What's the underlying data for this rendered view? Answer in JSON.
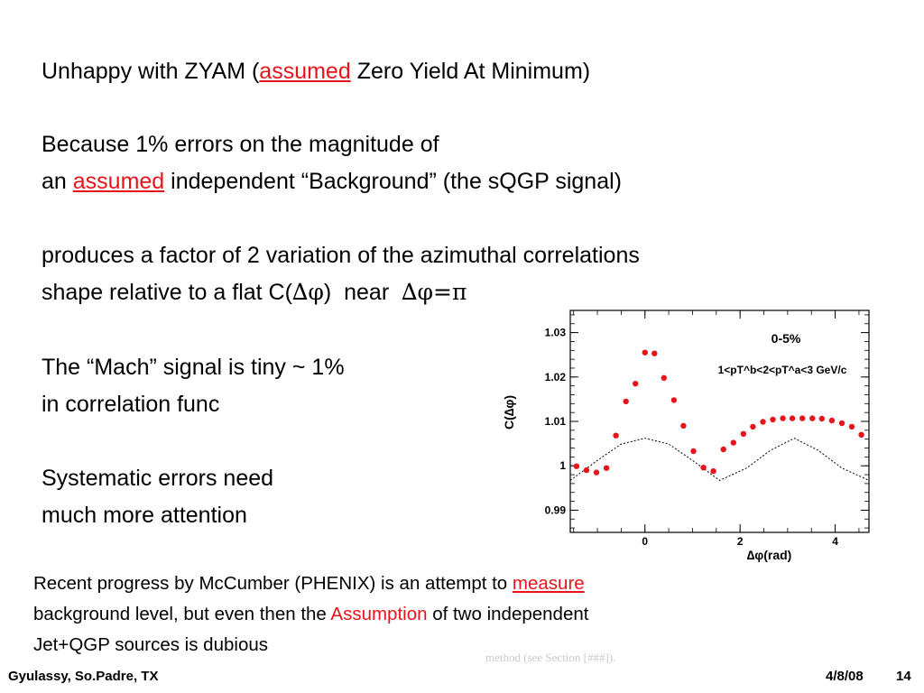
{
  "slide": {
    "line1": {
      "pre": "Unhappy with ZYAM (",
      "highlight": "assumed",
      "post": " Zero Yield At Minimum)"
    },
    "line2": "Because 1% errors on the magnitude of",
    "line3": {
      "pre": "an ",
      "highlight": "assumed",
      "post": " independent “Background” (the sQGP signal)"
    },
    "line4": "produces a factor of 2 variation of the azimuthal correlations",
    "line5": {
      "pre": "shape relative to a flat C(",
      "sym1": "∆φ",
      "mid": ")  near  ",
      "sym2": "∆φ=π"
    },
    "line6": "The “Mach” signal is tiny ~ 1%",
    "line7": "in correlation func",
    "line8": "Systematic errors need",
    "line9": "much more attention"
  },
  "note": {
    "l1_pre": "Recent progress by McCumber (PHENIX) is an attempt to ",
    "l1_highlight": "measure",
    "l2_pre": "background level, but even then the ",
    "l2_highlight": "Assumption",
    "l2_post": " of two independent",
    "l3": "Jet+QGP sources is dubious"
  },
  "ghost_text": "method (see Section [###]).",
  "footer": {
    "left": "Gyulassy, So.Padre, TX",
    "date": "4/8/08",
    "page": "14"
  },
  "colors": {
    "highlight": "#e8141c",
    "points": "#e8141c"
  },
  "chart_data": {
    "type": "scatter",
    "annotation_title": "0-5%",
    "annotation_cuts": "1<pT^b<2<pT^a<3 GeV/c",
    "xlabel": "∆φ(rad)",
    "ylabel": "C(∆φ)",
    "xlim": [
      -1.57,
      4.71
    ],
    "ylim": [
      0.985,
      1.035
    ],
    "xticks": [
      "0",
      "2",
      "4"
    ],
    "yticks": [
      "0.99",
      "1",
      "1.01",
      "1.02",
      "1.03"
    ],
    "series": [
      {
        "name": "data",
        "style": "points",
        "x": [
          -1.44,
          -1.23,
          -1.02,
          -0.81,
          -0.61,
          -0.4,
          -0.2,
          0.0,
          0.2,
          0.4,
          0.61,
          0.81,
          1.02,
          1.23,
          1.44,
          1.65,
          1.86,
          2.07,
          2.27,
          2.48,
          2.69,
          2.9,
          3.1,
          3.31,
          3.52,
          3.72,
          3.93,
          4.14,
          4.35,
          4.55
        ],
        "y": [
          0.9999,
          0.999,
          0.9985,
          0.9995,
          1.0068,
          1.0145,
          1.0185,
          1.0255,
          1.0253,
          1.0198,
          1.0148,
          1.009,
          1.0033,
          0.9996,
          0.9988,
          1.0037,
          1.0052,
          1.0072,
          1.0088,
          1.0099,
          1.0104,
          1.0107,
          1.0107,
          1.0107,
          1.0107,
          1.0106,
          1.0102,
          1.0096,
          1.0088,
          1.007
        ]
      },
      {
        "name": "dashed curve",
        "style": "dashed",
        "x": [
          -1.57,
          -1.0,
          -0.5,
          0.0,
          0.5,
          1.0,
          1.57,
          2.14,
          2.64,
          3.14,
          3.64,
          4.14,
          4.71
        ],
        "y": [
          0.9967,
          1.0012,
          1.0049,
          1.0062,
          1.0049,
          1.0012,
          0.9967,
          0.9995,
          1.0035,
          1.0062,
          1.0035,
          0.9995,
          0.9967
        ]
      }
    ]
  }
}
